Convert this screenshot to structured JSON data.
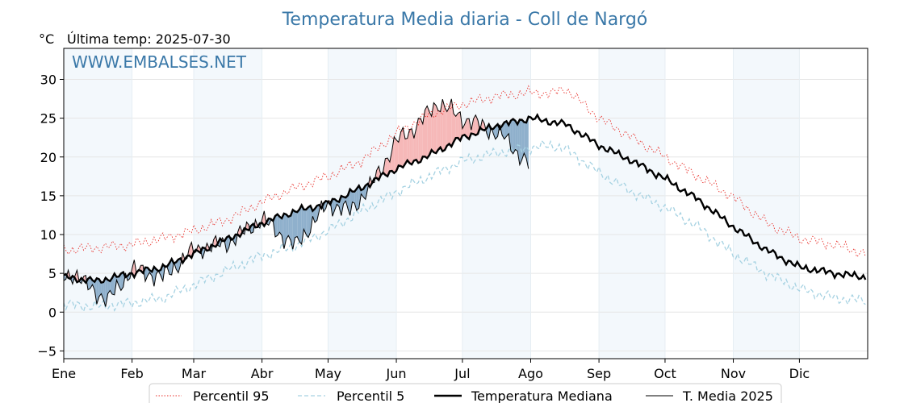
{
  "chart_data": {
    "type": "line",
    "title": "Temperatura Media diaria - Coll de Nargó",
    "unit_label": "°C",
    "subtitle": "Última temp: 2025-07-30",
    "watermark": "WWW.EMBALSES.NET",
    "ylim": [
      -6,
      34
    ],
    "yticks": [
      {
        "value": 30,
        "label": "30"
      },
      {
        "value": 25,
        "label": "25"
      },
      {
        "value": 20,
        "label": "20"
      },
      {
        "value": 15,
        "label": "15"
      },
      {
        "value": 10,
        "label": "10"
      },
      {
        "value": 5,
        "label": "5"
      },
      {
        "value": 0,
        "label": "0"
      },
      {
        "value": -5,
        "label": "−5"
      }
    ],
    "xticks": [
      {
        "day": 0,
        "label": "Ene"
      },
      {
        "day": 31,
        "label": "Feb"
      },
      {
        "day": 59,
        "label": "Mar"
      },
      {
        "day": 90,
        "label": "Abr"
      },
      {
        "day": 120,
        "label": "May"
      },
      {
        "day": 151,
        "label": "Jun"
      },
      {
        "day": 181,
        "label": "Jul"
      },
      {
        "day": 212,
        "label": "Ago"
      },
      {
        "day": 243,
        "label": "Sep"
      },
      {
        "day": 273,
        "label": "Oct"
      },
      {
        "day": 304,
        "label": "Nov"
      },
      {
        "day": 334,
        "label": "Dic"
      }
    ],
    "grid": true,
    "legend": {
      "position": "bottom",
      "entries": [
        "Percentil 95",
        "Percentil 5",
        "Temperatura Mediana",
        "T. Media 2025"
      ]
    },
    "series": [
      {
        "name": "Percentil 95",
        "color": "#e8302a",
        "style": "dotted",
        "x": [
          0,
          15,
          31,
          45,
          59,
          75,
          90,
          105,
          120,
          135,
          151,
          166,
          181,
          196,
          212,
          222,
          228,
          243,
          258,
          273,
          288,
          304,
          319,
          334,
          350,
          364
        ],
        "y": [
          8,
          8.3,
          8.7,
          9.5,
          10.5,
          12,
          14.2,
          16,
          17.5,
          19.5,
          23,
          25.5,
          26.8,
          27.8,
          28.3,
          28.2,
          28.8,
          25,
          22.5,
          20,
          17.5,
          14.8,
          11.5,
          9.5,
          8.7,
          7.5
        ]
      },
      {
        "name": "Percentil 5",
        "color": "#a6d2e2",
        "style": "dashed",
        "x": [
          0,
          15,
          31,
          45,
          59,
          75,
          90,
          105,
          120,
          135,
          151,
          166,
          181,
          196,
          212,
          222,
          228,
          243,
          258,
          273,
          288,
          304,
          319,
          334,
          350,
          364
        ],
        "y": [
          1,
          0.7,
          1.2,
          1.8,
          3.5,
          5.5,
          7.3,
          8.5,
          10.5,
          13,
          15.5,
          17.5,
          19.5,
          20.5,
          21.2,
          21.5,
          21,
          18,
          15.5,
          13.5,
          11,
          7.5,
          5,
          3,
          1.8,
          1.5
        ]
      },
      {
        "name": "Temperatura Mediana",
        "color": "#000000",
        "style": "solid-thick",
        "x": [
          0,
          15,
          31,
          45,
          59,
          75,
          90,
          105,
          120,
          135,
          151,
          166,
          181,
          196,
          212,
          222,
          228,
          243,
          258,
          273,
          288,
          304,
          319,
          334,
          350,
          364
        ],
        "y": [
          4.5,
          4,
          5,
          5.8,
          7.5,
          9.5,
          11.5,
          13,
          14,
          16,
          18.5,
          20.2,
          22.5,
          24,
          25,
          24.5,
          24.2,
          21.5,
          19.5,
          17.2,
          14.5,
          11,
          8,
          5.8,
          5,
          4.5
        ]
      },
      {
        "name": "T. Media 2025",
        "color": "#000000",
        "style": "solid-thin",
        "x": [
          0,
          5,
          10,
          20,
          31,
          45,
          59,
          75,
          90,
          105,
          120,
          130,
          140,
          151,
          160,
          170,
          181,
          190,
          200,
          211
        ],
        "y": [
          4.5,
          5,
          3.5,
          1.5,
          5.5,
          4.5,
          8,
          9,
          12,
          8.5,
          14,
          13,
          16.5,
          22,
          24,
          27,
          25,
          24,
          22.5,
          19
        ]
      }
    ]
  }
}
